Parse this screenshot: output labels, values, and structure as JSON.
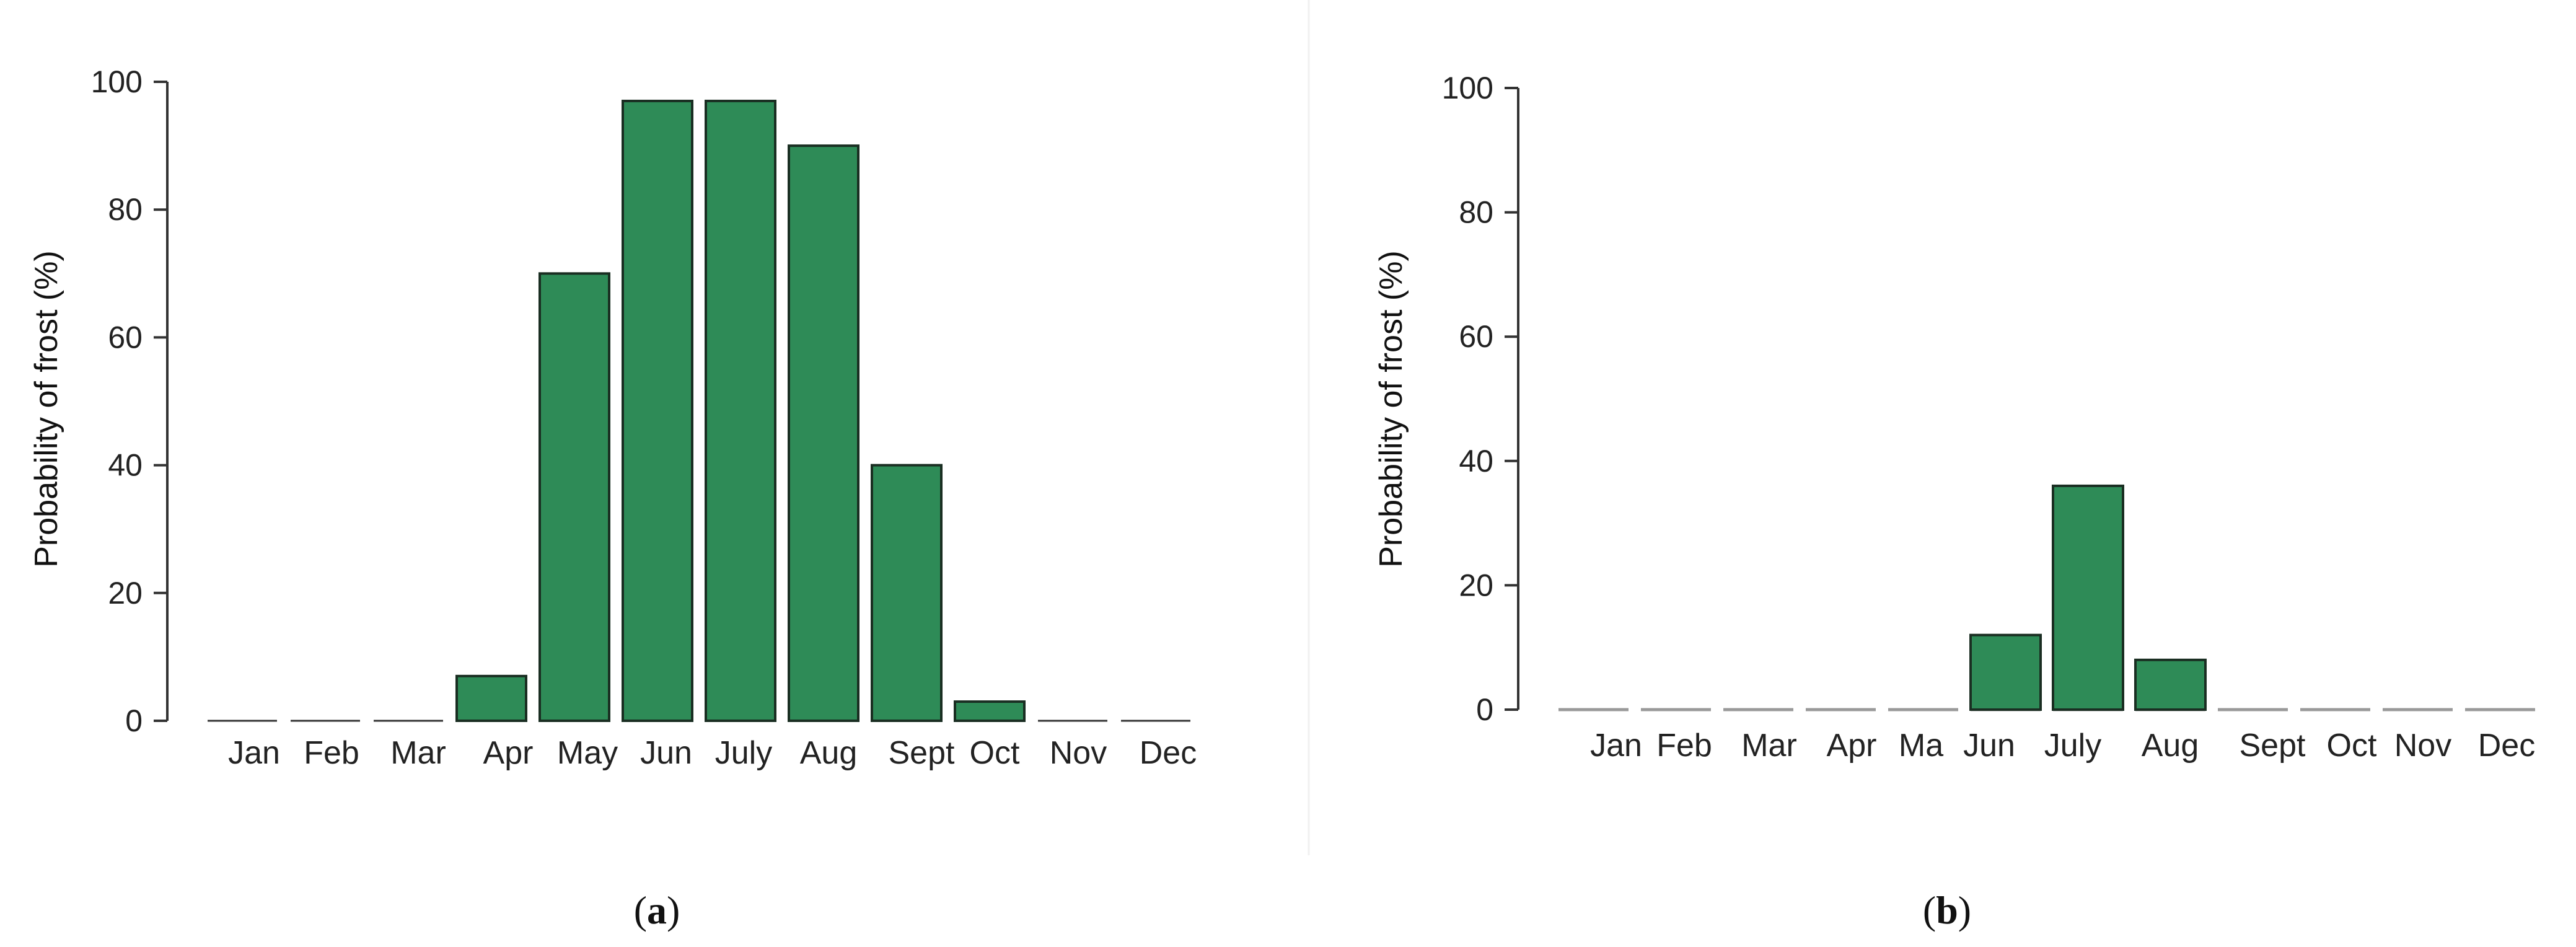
{
  "colors": {
    "bar_fill": "#2e8b57",
    "bar_stroke": "#1a2e22",
    "axis": "#333333",
    "zero_bar": "#999999"
  },
  "chart_data": [
    {
      "type": "bar",
      "panel": "a",
      "caption": {
        "open": "(",
        "letter": "a",
        "close": ")"
      },
      "ylabel": "Probability of frost (%)",
      "ylim": [
        0,
        100
      ],
      "yticks": [
        0,
        20,
        40,
        60,
        80,
        100
      ],
      "categories": [
        "Jan",
        "Feb",
        "Mar",
        "Apr",
        "May",
        "Jun",
        "July",
        "Aug",
        "Sept",
        "Oct",
        "Nov",
        "Dec"
      ],
      "values": [
        0,
        0,
        0,
        7,
        70,
        97,
        97,
        90,
        40,
        3,
        0,
        0
      ],
      "grid": false
    },
    {
      "type": "bar",
      "panel": "b",
      "caption": {
        "open": "(",
        "letter": "b",
        "close": ")"
      },
      "ylabel": "Probability of frost (%)",
      "ylim": [
        0,
        100
      ],
      "yticks": [
        0,
        20,
        40,
        60,
        80,
        100
      ],
      "categories": [
        "Jan",
        "Feb",
        "Mar",
        "Apr",
        "Ma",
        "Jun",
        "July",
        "Aug",
        "Sept",
        "Oct",
        "Nov",
        "Dec"
      ],
      "values": [
        0,
        0,
        0,
        0,
        0,
        12,
        36,
        8,
        0,
        0,
        0,
        0
      ],
      "grid": false
    }
  ]
}
